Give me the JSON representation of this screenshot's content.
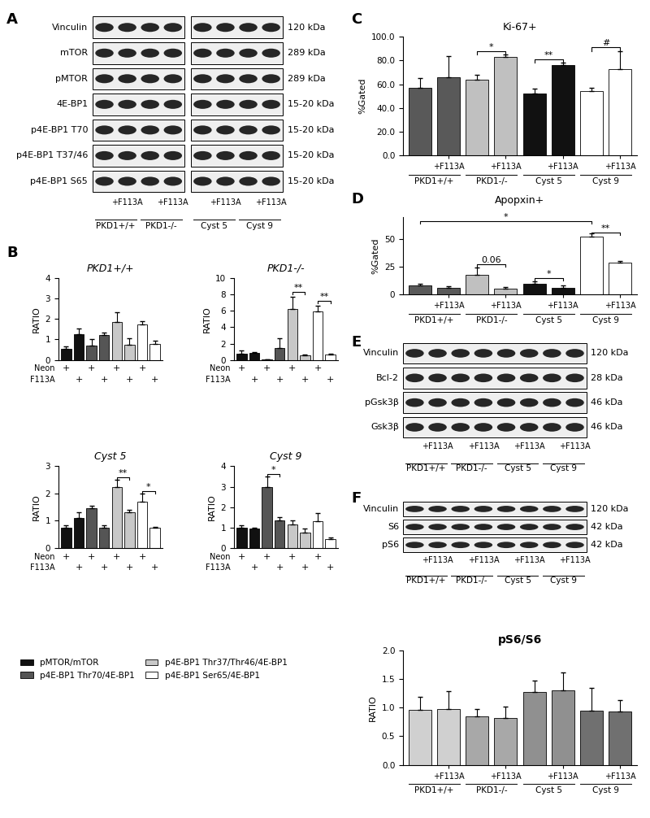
{
  "chart_data": [
    {
      "type": "bar",
      "title": "PKD1+/+",
      "panel": "B",
      "ylabel": "RATIO",
      "legend": "lower left",
      "categories": [
        null,
        null,
        null,
        null,
        null,
        null,
        null,
        null
      ],
      "x_rows": [
        {
          "label": "Neon",
          "marks": [
            "+",
            null,
            "+",
            null,
            "+",
            null,
            "+",
            null
          ]
        },
        {
          "label": "F113A",
          "marks": [
            null,
            "+",
            null,
            "+",
            null,
            "+",
            null,
            "+"
          ]
        }
      ],
      "series": [
        {
          "name": "pMTOR/mTOR",
          "color": "#111111",
          "values": [
            0.55,
            1.25,
            null,
            null,
            null,
            null,
            null,
            null
          ],
          "errors": [
            0.1,
            0.3,
            null,
            null,
            null,
            null,
            null,
            null
          ]
        },
        {
          "name": "p4E-BP1 Thr70/4E-BP1",
          "color": "#555555",
          "values": [
            null,
            null,
            0.7,
            1.2,
            null,
            null,
            null,
            null
          ],
          "errors": [
            null,
            null,
            0.3,
            0.15,
            null,
            null,
            null,
            null
          ]
        },
        {
          "name": "p4E-BP1 Thr37/Thr46/4E-BP1",
          "color": "#c8c8c8",
          "values": [
            null,
            null,
            null,
            null,
            1.85,
            0.75,
            null,
            null
          ],
          "errors": [
            null,
            null,
            null,
            null,
            0.5,
            0.3,
            null,
            null
          ]
        },
        {
          "name": "p4E-BP1 Ser65/4E-BP1",
          "color": "#ffffff",
          "values": [
            null,
            null,
            null,
            null,
            null,
            null,
            1.75,
            0.8
          ],
          "errors": [
            null,
            null,
            null,
            null,
            null,
            null,
            0.15,
            0.15
          ]
        }
      ],
      "ylim": [
        0,
        4
      ],
      "yticks": [
        0,
        1,
        2,
        3,
        4
      ]
    },
    {
      "type": "bar",
      "title": "PKD1-/-",
      "ylabel": "RATIO",
      "categories": [
        null,
        null,
        null,
        null,
        null,
        null,
        null,
        null
      ],
      "x_rows": [
        {
          "label": "Neon",
          "marks": [
            "+",
            null,
            "+",
            null,
            "+",
            null,
            "+",
            null
          ]
        },
        {
          "label": "F113A",
          "marks": [
            null,
            "+",
            null,
            "+",
            null,
            "+",
            null,
            "+"
          ]
        }
      ],
      "series": [
        {
          "name": "pMTOR/mTOR",
          "color": "#111111",
          "values": [
            0.8,
            0.85,
            null,
            null,
            null,
            null,
            null,
            null
          ],
          "errors": [
            0.4,
            0.1,
            null,
            null,
            null,
            null,
            null,
            null
          ]
        },
        {
          "name": "p4E-BP1 Thr70/4E-BP1",
          "color": "#555555",
          "values": [
            null,
            null,
            0.05,
            1.5,
            null,
            null,
            null,
            null
          ],
          "errors": [
            null,
            null,
            0.05,
            1.1,
            null,
            null,
            null,
            null
          ]
        },
        {
          "name": "p4E-BP1 Thr37/Thr46/4E-BP1",
          "color": "#c8c8c8",
          "values": [
            null,
            null,
            null,
            null,
            6.2,
            0.6,
            null,
            null
          ],
          "errors": [
            null,
            null,
            null,
            null,
            1.5,
            0.1,
            null,
            null
          ]
        },
        {
          "name": "p4E-BP1 Ser65/4E-BP1",
          "color": "#ffffff",
          "values": [
            null,
            null,
            null,
            null,
            null,
            null,
            5.9,
            0.65
          ],
          "errors": [
            null,
            null,
            null,
            null,
            null,
            null,
            0.7,
            0.1
          ]
        }
      ],
      "significance": [
        {
          "text": "**",
          "from": 4,
          "to": 5,
          "y": 8.3
        },
        {
          "text": "**",
          "from": 6,
          "to": 7,
          "y": 7.2
        }
      ],
      "ylim": [
        0,
        10
      ],
      "yticks": [
        0,
        2,
        4,
        6,
        8,
        10
      ]
    },
    {
      "type": "bar",
      "title": "Cyst 5",
      "ylabel": "RATIO",
      "categories": [
        null,
        null,
        null,
        null,
        null,
        null,
        null,
        null
      ],
      "x_rows": [
        {
          "label": "Neon",
          "marks": [
            "+",
            null,
            "+",
            null,
            "+",
            null,
            "+",
            null
          ]
        },
        {
          "label": "F113A",
          "marks": [
            null,
            "+",
            null,
            "+",
            null,
            "+",
            null,
            "+"
          ]
        }
      ],
      "series": [
        {
          "name": "pMTOR/mTOR",
          "color": "#111111",
          "values": [
            0.75,
            1.1,
            null,
            null,
            null,
            null,
            null,
            null
          ],
          "errors": [
            0.1,
            0.2,
            null,
            null,
            null,
            null,
            null,
            null
          ]
        },
        {
          "name": "p4E-BP1 Thr70/4E-BP1",
          "color": "#555555",
          "values": [
            null,
            null,
            1.45,
            0.75,
            null,
            null,
            null,
            null
          ],
          "errors": [
            null,
            null,
            0.1,
            0.1,
            null,
            null,
            null,
            null
          ]
        },
        {
          "name": "p4E-BP1 Thr37/Thr46/4E-BP1",
          "color": "#c8c8c8",
          "values": [
            null,
            null,
            null,
            null,
            2.25,
            1.3,
            null,
            null
          ],
          "errors": [
            null,
            null,
            null,
            null,
            0.25,
            0.1,
            null,
            null
          ]
        },
        {
          "name": "p4E-BP1 Ser65/4E-BP1",
          "color": "#ffffff",
          "values": [
            null,
            null,
            null,
            null,
            null,
            null,
            1.7,
            0.75
          ],
          "errors": [
            null,
            null,
            null,
            null,
            null,
            null,
            0.3,
            0.03
          ]
        }
      ],
      "significance": [
        {
          "text": "**",
          "from": 4,
          "to": 5,
          "y": 2.6
        },
        {
          "text": "*",
          "from": 6,
          "to": 7,
          "y": 2.1
        }
      ],
      "ylim": [
        0,
        3
      ],
      "yticks": [
        0,
        1,
        2,
        3
      ]
    },
    {
      "type": "bar",
      "title": "Cyst 9",
      "ylabel": "RATIO",
      "categories": [
        null,
        null,
        null,
        null,
        null,
        null,
        null,
        null
      ],
      "x_rows": [
        {
          "label": "Neon",
          "marks": [
            "+",
            null,
            "+",
            null,
            "+",
            null,
            "+",
            null
          ]
        },
        {
          "label": "F113A",
          "marks": [
            null,
            "+",
            null,
            "+",
            null,
            "+",
            null,
            "+"
          ]
        }
      ],
      "series": [
        {
          "name": "pMTOR/mTOR",
          "color": "#111111",
          "values": [
            1.0,
            0.95,
            null,
            null,
            null,
            null,
            null,
            null
          ],
          "errors": [
            0.1,
            0.05,
            null,
            null,
            null,
            null,
            null,
            null
          ]
        },
        {
          "name": "p4E-BP1 Thr70/4E-BP1",
          "color": "#555555",
          "values": [
            null,
            null,
            3.0,
            1.35,
            null,
            null,
            null,
            null
          ],
          "errors": [
            null,
            null,
            0.5,
            0.15,
            null,
            null,
            null,
            null
          ]
        },
        {
          "name": "p4E-BP1 Thr37/Thr46/4E-BP1",
          "color": "#c8c8c8",
          "values": [
            null,
            null,
            null,
            null,
            1.15,
            0.75,
            null,
            null
          ],
          "errors": [
            null,
            null,
            null,
            null,
            0.2,
            0.2,
            null,
            null
          ]
        },
        {
          "name": "p4E-BP1 Ser65/4E-BP1",
          "color": "#ffffff",
          "values": [
            null,
            null,
            null,
            null,
            null,
            null,
            1.3,
            0.45
          ],
          "errors": [
            null,
            null,
            null,
            null,
            null,
            null,
            0.4,
            0.05
          ]
        }
      ],
      "significance": [
        {
          "text": "*",
          "from": 2,
          "to": 3,
          "y": 3.6
        }
      ],
      "ylim": [
        0,
        4
      ],
      "yticks": [
        0,
        1,
        2,
        3,
        4
      ]
    },
    {
      "type": "bar",
      "title": "Ki-67+",
      "panel": "C",
      "ylabel": "%Gated",
      "categories": [
        null,
        "+F113A",
        null,
        "+F113A",
        null,
        "+F113A",
        null,
        "+F113A"
      ],
      "groups": [
        "PKD1+/+",
        "PKD1-/-",
        "Cyst 5",
        "Cyst 9"
      ],
      "values": [
        57,
        66,
        64,
        83,
        52,
        76,
        54,
        73
      ],
      "errors": [
        8,
        18,
        4,
        2,
        4,
        2,
        3,
        15
      ],
      "colors": [
        "#595959",
        "#595959",
        "#c0c0c0",
        "#c0c0c0",
        "#111111",
        "#111111",
        "#ffffff",
        "#ffffff"
      ],
      "significance": [
        {
          "text": "*",
          "from": 2,
          "to": 3,
          "y": 88
        },
        {
          "text": "**",
          "from": 4,
          "to": 5,
          "y": 81
        },
        {
          "text": "#",
          "from": 6,
          "to": 7,
          "y": 91
        }
      ],
      "ylim": [
        0,
        100
      ],
      "yticks": [
        {
          "value": 0,
          "label": "0.0"
        },
        {
          "value": 20,
          "label": "20.0"
        },
        {
          "value": 40,
          "label": "40.0"
        },
        {
          "value": 60,
          "label": "60.0"
        },
        {
          "value": 80,
          "label": "80.0"
        },
        {
          "value": 100,
          "label": "100.0"
        }
      ]
    },
    {
      "type": "bar",
      "title": "Apopxin+",
      "panel": "D",
      "ylabel": "%Gated",
      "categories": [
        null,
        "+F113A",
        null,
        "+F113A",
        null,
        "+F113A",
        null,
        "+F113A"
      ],
      "groups": [
        "PKD1+/+",
        "PKD1-/-",
        "Cyst 5",
        "Cyst 9"
      ],
      "values": [
        8,
        6,
        18,
        5,
        10,
        6,
        52,
        29
      ],
      "errors": [
        2,
        1.5,
        6,
        1.5,
        2,
        2,
        3,
        1.5
      ],
      "colors": [
        "#595959",
        "#595959",
        "#c0c0c0",
        "#c0c0c0",
        "#111111",
        "#111111",
        "#ffffff",
        "#ffffff"
      ],
      "significance": [
        {
          "text": "0.06",
          "from": 2,
          "to": 3,
          "y": 27
        },
        {
          "text": "*",
          "from": 4,
          "to": 5,
          "y": 15
        },
        {
          "text": "**",
          "from": 6,
          "to": 7,
          "y": 56
        },
        {
          "text": "*",
          "from": 0,
          "to": 6,
          "y": 66
        }
      ],
      "ylim": [
        0,
        70
      ],
      "yticks": [
        0,
        25,
        50
      ]
    },
    {
      "type": "bar",
      "title": "pS6/S6",
      "ylabel": "RATIO",
      "categories": [
        null,
        "+F113A",
        null,
        "+F113A",
        null,
        "+F113A",
        null,
        "+F113A"
      ],
      "groups": [
        "PKD1+/+",
        "PKD1-/-",
        "Cyst 5",
        "Cyst 9"
      ],
      "values": [
        0.96,
        0.98,
        0.85,
        0.82,
        1.27,
        1.3,
        0.94,
        0.93
      ],
      "errors": [
        0.23,
        0.3,
        0.13,
        0.2,
        0.2,
        0.32,
        0.4,
        0.2
      ],
      "colors": [
        "#d0d0d0",
        "#d0d0d0",
        "#a8a8a8",
        "#a8a8a8",
        "#909090",
        "#909090",
        "#707070",
        "#707070"
      ],
      "ylim": [
        0,
        2.0
      ],
      "yticks": [
        {
          "value": 0,
          "label": "0.0"
        },
        {
          "value": 0.5,
          "label": "0.5"
        },
        {
          "value": 1.0,
          "label": "1.0"
        },
        {
          "value": 1.5,
          "label": "1.5"
        },
        {
          "value": 2.0,
          "label": "2.0"
        }
      ]
    }
  ],
  "blots": [
    {
      "panel": "A",
      "rows": [
        {
          "label": "Vinculin",
          "size": "120 kDa"
        },
        {
          "label": "mTOR",
          "size": "289 kDa"
        },
        {
          "label": "pMTOR",
          "size": "289 kDa"
        },
        {
          "label": "4E-BP1",
          "size": "15-20 kDa"
        },
        {
          "label": "p4E-BP1 T70",
          "size": "15-20 kDa"
        },
        {
          "label": "p4E-BP1 T37/46",
          "size": "15-20 kDa"
        },
        {
          "label": "p4E-BP1 S65",
          "size": "15-20 kDa"
        }
      ],
      "sections": [
        {
          "lanes": [
            null,
            "+F113A",
            null,
            "+F113A"
          ],
          "groups": [
            "PKD1+/+",
            "PKD1-/-"
          ]
        },
        {
          "lanes": [
            null,
            "+F113A",
            null,
            "+F113A"
          ],
          "groups": [
            "Cyst 5",
            "Cyst 9"
          ]
        }
      ]
    },
    {
      "panel": "E",
      "rows": [
        {
          "label": "Vinculin",
          "size": "120 kDa"
        },
        {
          "label": "Bcl-2",
          "size": "28 kDa"
        },
        {
          "label": "pGsk3β",
          "size": "46 kDa"
        },
        {
          "label": "Gsk3β",
          "size": "46 kDa"
        }
      ],
      "sections": [
        {
          "lanes": [
            null,
            "+F113A",
            null,
            "+F113A",
            null,
            "+F113A",
            null,
            "+F113A"
          ],
          "groups": [
            "PKD1+/+",
            "PKD1-/-",
            "Cyst 5",
            "Cyst 9"
          ]
        }
      ]
    },
    {
      "panel": "F",
      "rows": [
        {
          "label": "Vinculin",
          "size": "120 kDa"
        },
        {
          "label": "S6",
          "size": "42 kDa"
        },
        {
          "label": "pS6",
          "size": "42 kDa"
        }
      ],
      "sections": [
        {
          "lanes": [
            null,
            "+F113A",
            null,
            "+F113A",
            null,
            "+F113A",
            null,
            "+F113A"
          ],
          "groups": [
            "PKD1+/+",
            "PKD1-/-",
            "Cyst 5",
            "Cyst 9"
          ]
        }
      ]
    }
  ]
}
